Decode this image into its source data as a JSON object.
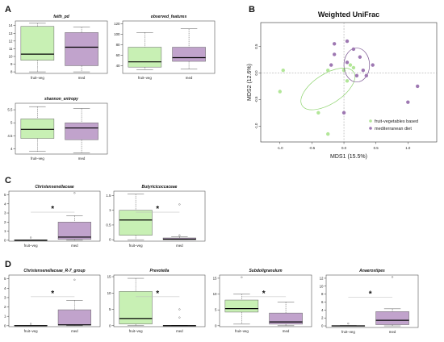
{
  "panels": [
    "A",
    "B",
    "C",
    "D"
  ],
  "colors": {
    "fruit_veg": "#c8f0b4",
    "med": "#c1a3cc",
    "fruit_veg_line": "#8fd470",
    "med_line": "#7e5a94"
  },
  "chart_data": [
    {
      "type": "box",
      "panel": "A",
      "title": "faith_pd",
      "categories": [
        "fruit–veg",
        "med"
      ],
      "ylim": [
        7.8,
        14.6
      ],
      "yticks": [
        8,
        9,
        10,
        11,
        12,
        13,
        14
      ],
      "boxes": [
        {
          "min": 8.0,
          "q1": 9.5,
          "median": 10.3,
          "q3": 13.9,
          "max": 14.3,
          "outliers": []
        },
        {
          "min": 8.0,
          "q1": 8.8,
          "median": 11.2,
          "q3": 13.1,
          "max": 13.8,
          "outliers": []
        }
      ]
    },
    {
      "type": "box",
      "panel": "A",
      "title": "observed_features",
      "categories": [
        "fruit–veg",
        "med"
      ],
      "ylim": [
        25,
        125
      ],
      "yticks": [
        40,
        60,
        80,
        100,
        120
      ],
      "boxes": [
        {
          "min": 32,
          "q1": 37,
          "median": 47,
          "q3": 75,
          "max": 103,
          "outliers": []
        },
        {
          "min": 33,
          "q1": 48,
          "median": 55,
          "q3": 75,
          "max": 110,
          "outliers": []
        }
      ]
    },
    {
      "type": "box",
      "panel": "A",
      "title": "shannon_entropy",
      "categories": [
        "fruit–veg",
        "med"
      ],
      "ylim": [
        3.8,
        5.75
      ],
      "yticks": [
        4.0,
        4.5,
        5.0,
        5.5
      ],
      "boxes": [
        {
          "min": 3.9,
          "q1": 4.4,
          "median": 4.75,
          "q3": 5.15,
          "max": 5.62,
          "outliers": []
        },
        {
          "min": 3.85,
          "q1": 4.35,
          "median": 4.8,
          "q3": 5.0,
          "max": 5.55,
          "outliers": []
        }
      ]
    },
    {
      "type": "scatter",
      "panel": "B",
      "title": "Weighted UniFrac",
      "xlabel": "MDS1 (15.5%)",
      "ylabel": "MDS2 (12.6%)",
      "xlim": [
        -1.3,
        1.45
      ],
      "ylim": [
        -1.3,
        0.95
      ],
      "xticks": [
        -1.0,
        -0.5,
        0.0,
        0.5,
        1.0
      ],
      "yticks": [
        -1.0,
        -0.5,
        0.0,
        0.5
      ],
      "series": [
        {
          "name": "fruit-vegetables based",
          "x": [
            -1.0,
            -0.95,
            -0.4,
            -0.25,
            0.05,
            0.1,
            0.15,
            0.0,
            -0.25
          ],
          "y": [
            -0.35,
            0.05,
            -0.75,
            -1.15,
            -0.15,
            0.15,
            0.1,
            0.05,
            0.05
          ],
          "ellipse": {
            "cx": -0.25,
            "cy": -0.3,
            "rx": 0.48,
            "ry": 0.28,
            "angle": -33
          }
        },
        {
          "name": "mediterranean diet",
          "x": [
            -0.15,
            0.05,
            0.15,
            -0.15,
            0.45,
            0.3,
            0.35,
            0.2,
            0.05,
            1.0,
            1.15,
            0.0,
            0.25,
            -0.2
          ],
          "y": [
            0.55,
            0.6,
            0.45,
            0.35,
            0.15,
            0.05,
            -0.05,
            -0.05,
            0.2,
            -0.55,
            -0.25,
            -0.75,
            0.3,
            0.15
          ],
          "ellipse": {
            "cx": 0.2,
            "cy": 0.15,
            "rx": 0.2,
            "ry": 0.32,
            "angle": 0
          }
        }
      ],
      "legend": "bottom-right"
    },
    {
      "type": "box",
      "panel": "C",
      "title": "Christensenellaceae",
      "categories": [
        "fruit–veg",
        "med"
      ],
      "ylim": [
        -0.1,
        5.4
      ],
      "yticks": [
        0,
        1,
        2,
        3,
        4,
        5
      ],
      "annotation": "*",
      "boxes": [
        {
          "min": 0,
          "q1": 0,
          "median": 0,
          "q3": 0.05,
          "max": 0.05,
          "outliers": [
            0.3
          ]
        },
        {
          "min": 0,
          "q1": 0.1,
          "median": 0.35,
          "q3": 2.0,
          "max": 2.7,
          "outliers": [
            5.2
          ]
        }
      ]
    },
    {
      "type": "box",
      "panel": "C",
      "title": "Butyricicoccaceae",
      "categories": [
        "fruit–veg",
        "med"
      ],
      "ylim": [
        -0.05,
        1.65
      ],
      "yticks": [
        0.0,
        0.5,
        1.0,
        1.5
      ],
      "annotation": "*",
      "boxes": [
        {
          "min": 0,
          "q1": 0.15,
          "median": 0.67,
          "q3": 1.0,
          "max": 1.55,
          "outliers": []
        },
        {
          "min": 0,
          "q1": 0,
          "median": 0.02,
          "q3": 0.06,
          "max": 0.1,
          "outliers": [
            0.15,
            1.2
          ]
        }
      ]
    },
    {
      "type": "box",
      "panel": "D",
      "title": "Christensenellaceae_R-7_group",
      "categories": [
        "fruit–veg",
        "med"
      ],
      "ylim": [
        -0.1,
        5.4
      ],
      "yticks": [
        0,
        1,
        2,
        3,
        4,
        5
      ],
      "annotation": "*",
      "boxes": [
        {
          "min": 0,
          "q1": 0,
          "median": 0,
          "q3": 0.05,
          "max": 0.05,
          "outliers": [
            0.2
          ]
        },
        {
          "min": 0,
          "q1": 0.05,
          "median": 0.1,
          "q3": 1.7,
          "max": 2.7,
          "outliers": [
            4.9
          ]
        }
      ]
    },
    {
      "type": "box",
      "panel": "D",
      "title": "Prevotella",
      "categories": [
        "fruit–veg",
        "med"
      ],
      "ylim": [
        -0.3,
        15.5
      ],
      "yticks": [
        0,
        5,
        10,
        15
      ],
      "annotation": "*",
      "boxes": [
        {
          "min": 0,
          "q1": 0.5,
          "median": 2.2,
          "q3": 10.5,
          "max": 14.5,
          "outliers": []
        },
        {
          "min": 0,
          "q1": 0,
          "median": 0,
          "q3": 0.05,
          "max": 0.1,
          "outliers": [
            2.5,
            5.0
          ]
        }
      ]
    },
    {
      "type": "box",
      "panel": "D",
      "title": "Subdoligranulum",
      "categories": [
        "fruit–veg",
        "med"
      ],
      "ylim": [
        -0.3,
        16
      ],
      "yticks": [
        0,
        5,
        10,
        15
      ],
      "annotation": "*",
      "boxes": [
        {
          "min": 0.5,
          "q1": 4.3,
          "median": 5.4,
          "q3": 8.1,
          "max": 10.0,
          "outliers": [
            15.3
          ]
        },
        {
          "min": 0,
          "q1": 0.5,
          "median": 1.2,
          "q3": 4.0,
          "max": 7.5,
          "outliers": []
        }
      ]
    },
    {
      "type": "box",
      "panel": "D",
      "title": "Anaerostipes",
      "categories": [
        "fruit–veg",
        "med"
      ],
      "ylim": [
        -0.4,
        12.8
      ],
      "yticks": [
        0,
        2,
        4,
        6,
        8,
        10,
        12
      ],
      "annotation": "*",
      "boxes": [
        {
          "min": 0,
          "q1": 0,
          "median": 0,
          "q3": 0.05,
          "max": 0.1,
          "outliers": [
            0.6
          ]
        },
        {
          "min": 0,
          "q1": 0.3,
          "median": 1.4,
          "q3": 3.6,
          "max": 4.3,
          "outliers": [
            12.3
          ]
        }
      ]
    }
  ]
}
